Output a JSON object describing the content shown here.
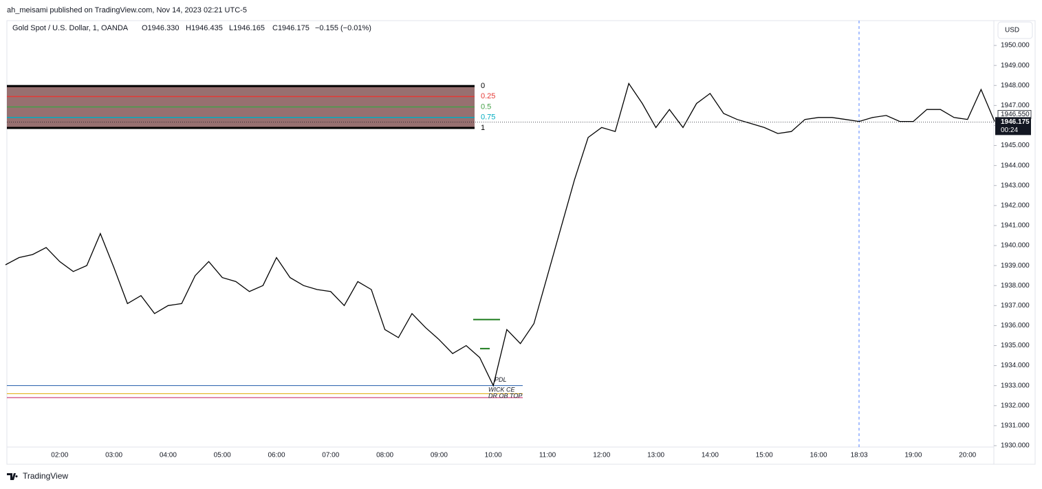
{
  "header": {
    "publisher": "ah_meisami published on TradingView.com, Nov 14, 2023 02:21 UTC-5",
    "legend": "Gold Spot / U.S. Dollar, 1, OANDA",
    "open": "O1946.330",
    "high": "H1946.435",
    "low": "L1946.165",
    "close": "C1946.175",
    "change": "−0.155 (−0.01%)"
  },
  "chart_data": {
    "type": "line",
    "categories": [
      null,
      null,
      null,
      null,
      "02:00",
      null,
      null,
      null,
      "03:00",
      null,
      null,
      null,
      "04:00",
      null,
      null,
      null,
      "05:00",
      null,
      null,
      null,
      "06:00",
      null,
      null,
      null,
      "07:00",
      null,
      null,
      null,
      "08:00",
      null,
      null,
      null,
      "09:00",
      null,
      null,
      null,
      "10:00",
      null,
      null,
      null,
      "11:00",
      null,
      null,
      null,
      "12:00",
      null,
      null,
      null,
      "13:00",
      null,
      null,
      null,
      "14:00",
      null,
      null,
      null,
      "15:00",
      null,
      null,
      null,
      "16:00",
      null,
      null,
      "18:03",
      null,
      null,
      null,
      "19:00",
      null,
      null,
      null,
      "20:00",
      null,
      null
    ],
    "values": [
      1939.04,
      1939.4,
      1939.55,
      1939.9,
      1939.2,
      1938.7,
      1939.0,
      1940.6,
      1938.9,
      1937.1,
      1937.5,
      1936.6,
      1937.0,
      1937.1,
      1938.5,
      1939.2,
      1938.4,
      1938.2,
      1937.7,
      1938.0,
      1939.4,
      1938.4,
      1938.0,
      1937.8,
      1937.7,
      1937.0,
      1938.2,
      1937.8,
      1935.8,
      1935.4,
      1936.6,
      1935.9,
      1935.3,
      1934.6,
      1935.0,
      1934.4,
      1933.0,
      1935.8,
      1935.1,
      1936.1,
      1938.5,
      1940.9,
      1943.3,
      1945.4,
      1945.9,
      1945.7,
      1948.1,
      1947.1,
      1945.9,
      1946.8,
      1945.9,
      1947.1,
      1947.6,
      1946.6,
      1946.3,
      1946.1,
      1945.9,
      1945.6,
      1945.7,
      1946.3,
      1946.4,
      1946.4,
      1946.3,
      1946.2,
      1946.4,
      1946.5,
      1946.2,
      1946.2,
      1946.8,
      1946.8,
      1946.4,
      1946.3,
      1947.8,
      1946.2
    ],
    "color": "#000000",
    "ylim": [
      1929.93,
      1951.24
    ],
    "yticks": [
      {
        "value": 1930,
        "label": "1930.000"
      },
      {
        "value": 1931,
        "label": "1931.000"
      },
      {
        "value": 1932,
        "label": "1932.000"
      },
      {
        "value": 1933,
        "label": "1933.000"
      },
      {
        "value": 1934,
        "label": "1934.000"
      },
      {
        "value": 1935,
        "label": "1935.000"
      },
      {
        "value": 1936,
        "label": "1936.000"
      },
      {
        "value": 1937,
        "label": "1937.000"
      },
      {
        "value": 1938,
        "label": "1938.000"
      },
      {
        "value": 1939,
        "label": "1939.000"
      },
      {
        "value": 1940,
        "label": "1940.000"
      },
      {
        "value": 1941,
        "label": "1941.000"
      },
      {
        "value": 1942,
        "label": "1942.000"
      },
      {
        "value": 1943,
        "label": "1943.000"
      },
      {
        "value": 1944,
        "label": "1944.000"
      },
      {
        "value": 1945,
        "label": "1945.000"
      },
      {
        "value": 1946,
        "label": "1946.000"
      },
      {
        "value": 1947,
        "label": "1947.000"
      },
      {
        "value": 1948,
        "label": "1948.000"
      },
      {
        "value": 1949,
        "label": "1949.000"
      },
      {
        "value": 1950,
        "label": "1950.000"
      }
    ],
    "currency": "USD",
    "last_price": {
      "value": 1946.175,
      "label": "1946.175",
      "countdown": "00:24"
    },
    "prev_price": {
      "value": 1946.55,
      "label": "1946.550"
    },
    "fib": {
      "top": 1947.97,
      "bottom": 1945.88,
      "fill": "#977070",
      "levels": [
        {
          "value": 0,
          "color": "#000000"
        },
        {
          "value": 0.25,
          "color": "#e53935"
        },
        {
          "value": 0.5,
          "color": "#43a047"
        },
        {
          "value": 0.75,
          "color": "#00acc1"
        },
        {
          "value": 1,
          "color": "#000000"
        }
      ]
    },
    "levels": [
      {
        "name": "PDL",
        "value": 1933.0,
        "color": "#1e5aa8"
      },
      {
        "name": "WICK CE",
        "value": 1932.6,
        "color": "#e0a800"
      },
      {
        "name": "DR OB TOP",
        "value": 1932.4,
        "color": "#c2185b"
      }
    ],
    "green_lines": [
      1936.3,
      1934.85
    ]
  },
  "footer": {
    "brand": "TradingView"
  }
}
